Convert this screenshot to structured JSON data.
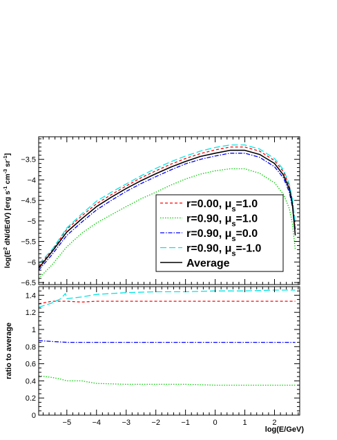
{
  "chart_data": [
    {
      "type": "line",
      "panel": "top",
      "xlabel": "",
      "ylabel_parts": [
        "log(E",
        "2",
        " dN/dEdV)  [erg s",
        "-1",
        " cm",
        "-3",
        " sr",
        "-1",
        "]"
      ],
      "xlim": [
        -5.95,
        2.85
      ],
      "ylim": [
        -6.55,
        -2.95
      ],
      "yticks": [
        -3.5,
        -4,
        -4.5,
        -5,
        -5.5,
        -6,
        -6.5
      ],
      "ytick_labels": [
        "-3.5",
        "-4",
        "-4.5",
        "-5",
        "-5.5",
        "-6",
        "-6.5"
      ],
      "legend_position": "bottom-right",
      "legend": [
        {
          "prefix": "r=0.00,  ",
          "mu": "μ",
          "sub": "s",
          "suffix": "=1.0",
          "style": "dashed",
          "color": "#ff0000"
        },
        {
          "prefix": "r=0.90,  ",
          "mu": "μ",
          "sub": "s",
          "suffix": "=1.0",
          "style": "dotted",
          "color": "#00cc00"
        },
        {
          "prefix": "r=0.90,  ",
          "mu": "μ",
          "sub": "s",
          "suffix": "=0.0",
          "style": "dashdot",
          "color": "#0000ff"
        },
        {
          "prefix": "r=0.90,  ",
          "mu": "μ",
          "sub": "s",
          "suffix": "=-1.0",
          "style": "longdash",
          "color": "#00e5e5"
        },
        {
          "prefix": "Average",
          "mu": "",
          "sub": "",
          "suffix": "",
          "style": "solid",
          "color": "#000000"
        }
      ],
      "series": [
        {
          "color": "#ff0000",
          "style": "dashed",
          "x": [
            -5.95,
            -5.5,
            -5.0,
            -4.5,
            -4.0,
            -3.5,
            -3.0,
            -2.5,
            -2.0,
            -1.5,
            -1.0,
            -0.5,
            0.0,
            0.5,
            1.0,
            1.5,
            2.0,
            2.3,
            2.5,
            2.6,
            2.7
          ],
          "y": [
            -6.1,
            -5.72,
            -5.2,
            -4.88,
            -4.58,
            -4.36,
            -4.15,
            -3.95,
            -3.78,
            -3.62,
            -3.48,
            -3.36,
            -3.27,
            -3.2,
            -3.2,
            -3.3,
            -3.53,
            -3.8,
            -4.15,
            -4.5,
            -5.1
          ]
        },
        {
          "color": "#00cc00",
          "style": "dotted",
          "x": [
            -5.95,
            -5.5,
            -5.0,
            -4.5,
            -4.0,
            -3.5,
            -3.0,
            -2.5,
            -2.0,
            -1.5,
            -1.0,
            -0.5,
            0.0,
            0.5,
            1.0,
            1.5,
            2.0,
            2.3,
            2.5,
            2.6,
            2.7
          ],
          "y": [
            -6.4,
            -6.07,
            -5.63,
            -5.3,
            -5.05,
            -4.85,
            -4.65,
            -4.46,
            -4.3,
            -4.13,
            -3.98,
            -3.86,
            -3.78,
            -3.73,
            -3.73,
            -3.84,
            -4.07,
            -4.35,
            -4.7,
            -5.05,
            -5.7
          ]
        },
        {
          "color": "#0000ff",
          "style": "dashdot",
          "x": [
            -5.95,
            -5.5,
            -5.0,
            -4.5,
            -4.0,
            -3.5,
            -3.0,
            -2.5,
            -2.0,
            -1.5,
            -1.0,
            -0.5,
            0.0,
            0.5,
            1.0,
            1.5,
            2.0,
            2.3,
            2.5,
            2.6,
            2.7
          ],
          "y": [
            -6.2,
            -5.82,
            -5.35,
            -5.03,
            -4.73,
            -4.5,
            -4.28,
            -4.09,
            -3.92,
            -3.76,
            -3.61,
            -3.5,
            -3.42,
            -3.35,
            -3.35,
            -3.45,
            -3.68,
            -3.95,
            -4.3,
            -4.65,
            -5.2
          ]
        },
        {
          "color": "#00e5e5",
          "style": "longdash",
          "x": [
            -5.95,
            -5.5,
            -5.0,
            -4.5,
            -4.0,
            -3.5,
            -3.0,
            -2.5,
            -2.0,
            -1.5,
            -1.0,
            -0.5,
            0.0,
            0.5,
            1.0,
            1.5,
            2.0,
            2.3,
            2.5,
            2.6,
            2.7
          ],
          "y": [
            -6.05,
            -5.7,
            -5.17,
            -4.83,
            -4.52,
            -4.3,
            -4.1,
            -3.9,
            -3.72,
            -3.56,
            -3.42,
            -3.3,
            -3.21,
            -3.15,
            -3.15,
            -3.25,
            -3.48,
            -3.75,
            -4.1,
            -4.45,
            -5.05
          ]
        },
        {
          "color": "#000000",
          "style": "solid",
          "x": [
            -5.95,
            -5.5,
            -5.0,
            -4.5,
            -4.0,
            -3.5,
            -3.0,
            -2.5,
            -2.0,
            -1.5,
            -1.0,
            -0.5,
            0.0,
            0.5,
            1.0,
            1.5,
            2.0,
            2.3,
            2.5,
            2.6,
            2.7
          ],
          "y": [
            -6.15,
            -5.75,
            -5.27,
            -4.95,
            -4.65,
            -4.42,
            -4.21,
            -4.02,
            -3.85,
            -3.69,
            -3.55,
            -3.43,
            -3.35,
            -3.28,
            -3.28,
            -3.38,
            -3.6,
            -3.88,
            -4.22,
            -4.58,
            -5.35
          ]
        }
      ]
    },
    {
      "type": "line",
      "panel": "bottom",
      "xlabel": "log(E/GeV)",
      "ylabel": "ratio to average",
      "xlim": [
        -5.95,
        2.85
      ],
      "ylim": [
        0,
        1.5
      ],
      "xticks": [
        -5,
        -4,
        -3,
        -2,
        -1,
        0,
        1,
        2
      ],
      "xtick_labels": [
        "-5",
        "-4",
        "-3",
        "-2",
        "-1",
        "0",
        "1",
        "2"
      ],
      "yticks": [
        0,
        0.2,
        0.4,
        0.6,
        0.8,
        1.0,
        1.2,
        1.4
      ],
      "ytick_labels": [
        "0",
        "0.2",
        "0.4",
        "0.6",
        "0.8",
        "1",
        "1.2",
        "1.4"
      ],
      "series": [
        {
          "color": "#ff0000",
          "style": "dashed",
          "x": [
            -5.95,
            -5.5,
            -5.0,
            -4.5,
            -4.0,
            -3.0,
            -2.0,
            -1.0,
            0.0,
            1.0,
            2.0,
            2.7
          ],
          "y": [
            1.3,
            1.33,
            1.33,
            1.32,
            1.33,
            1.33,
            1.33,
            1.33,
            1.33,
            1.33,
            1.33,
            1.33
          ]
        },
        {
          "color": "#00cc00",
          "style": "dotted",
          "x": [
            -5.95,
            -5.5,
            -5.2,
            -5.0,
            -4.5,
            -4.0,
            -3.0,
            -2.0,
            -1.0,
            0.0,
            1.0,
            2.0,
            2.7
          ],
          "y": [
            0.46,
            0.44,
            0.42,
            0.4,
            0.4,
            0.37,
            0.36,
            0.36,
            0.36,
            0.35,
            0.35,
            0.35,
            0.35
          ]
        },
        {
          "color": "#0000ff",
          "style": "dashdot",
          "x": [
            -5.95,
            -5.5,
            -5.0,
            -4.5,
            -4.0,
            -3.0,
            -2.0,
            -1.0,
            0.0,
            1.0,
            2.0,
            2.7
          ],
          "y": [
            0.87,
            0.86,
            0.85,
            0.85,
            0.85,
            0.85,
            0.85,
            0.85,
            0.85,
            0.85,
            0.85,
            0.85
          ]
        },
        {
          "color": "#00e5e5",
          "style": "longdash",
          "x": [
            -5.95,
            -5.5,
            -5.2,
            -5.05,
            -5.0,
            -4.5,
            -4.0,
            -3.0,
            -2.0,
            -1.0,
            0.0,
            1.0,
            2.0,
            2.7
          ],
          "y": [
            1.26,
            1.31,
            1.36,
            1.42,
            1.36,
            1.38,
            1.41,
            1.43,
            1.44,
            1.44,
            1.45,
            1.45,
            1.46,
            1.46
          ]
        }
      ]
    }
  ]
}
